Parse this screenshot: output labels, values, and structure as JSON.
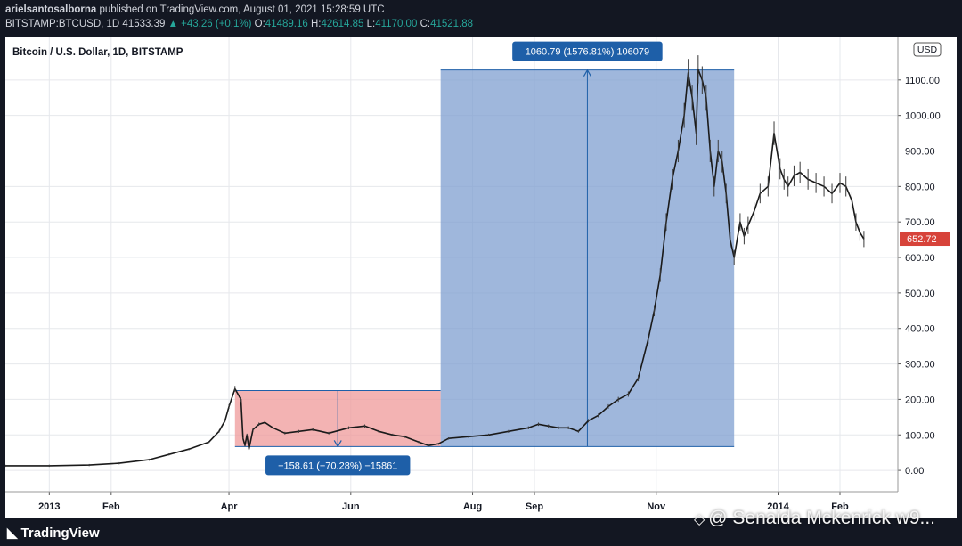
{
  "header": {
    "publisher": "arielsantosalborna",
    "published_text": "published on TradingView.com, August 01, 2021 15:28:59 UTC",
    "symbol": "BITSTAMP:BTCUSD, 1D",
    "last": "41533.39",
    "change": "▲ +43.26 (+0.1%)",
    "o_label": "O:",
    "o_value": "41489.16",
    "h_label": "H:",
    "h_value": "42614.85",
    "l_label": "L:",
    "l_value": "41170.00",
    "c_label": "C:",
    "c_value": "41521.88"
  },
  "chart_data": {
    "type": "line",
    "title": "Bitcoin / U.S. Dollar, 1D, BITSTAMP",
    "currency_badge": "USD",
    "last_price_label": "652.72",
    "last_price": 652.72,
    "y_ticks": [
      "0.00",
      "100.00",
      "200.00",
      "300.00",
      "400.00",
      "500.00",
      "600.00",
      "700.00",
      "800.00",
      "900.00",
      "1000.00",
      "1100.00"
    ],
    "ylim": [
      -60,
      1220
    ],
    "x_ticks": [
      {
        "label": "2013",
        "t": 0
      },
      {
        "label": "Feb",
        "t": 31
      },
      {
        "label": "Apr",
        "t": 90
      },
      {
        "label": "Jun",
        "t": 151
      },
      {
        "label": "Aug",
        "t": 212
      },
      {
        "label": "Sep",
        "t": 243
      },
      {
        "label": "Nov",
        "t": 304
      },
      {
        "label": "2014",
        "t": 365
      },
      {
        "label": "Feb",
        "t": 396
      }
    ],
    "xlim": [
      -22,
      425
    ],
    "series": [
      {
        "values_t": [
          -22,
          0,
          20,
          35,
          50,
          60,
          70,
          80,
          85,
          88,
          90,
          93,
          96,
          97,
          98,
          99,
          100,
          102,
          105,
          108,
          112,
          118,
          125,
          132,
          140,
          150,
          158,
          165,
          172,
          178,
          185,
          190,
          195,
          200,
          210,
          220,
          230,
          240,
          245,
          250,
          255,
          260,
          265,
          270,
          275,
          280,
          285,
          290,
          295,
          300,
          303,
          306,
          309,
          312,
          315,
          318,
          320,
          322,
          324,
          325,
          327,
          329,
          331,
          333,
          335,
          337,
          339,
          341,
          343,
          346,
          348,
          350,
          353,
          356,
          360,
          363,
          366,
          368,
          370,
          373,
          376,
          380,
          384,
          388,
          392,
          396,
          399,
          402,
          404,
          406,
          408
        ],
        "values_y": [
          13,
          13,
          15,
          20,
          30,
          45,
          60,
          80,
          110,
          140,
          180,
          230,
          200,
          90,
          70,
          100,
          60,
          115,
          130,
          135,
          120,
          105,
          110,
          115,
          105,
          120,
          125,
          110,
          100,
          95,
          80,
          70,
          75,
          90,
          95,
          100,
          110,
          120,
          130,
          125,
          120,
          120,
          110,
          140,
          155,
          180,
          200,
          215,
          260,
          370,
          450,
          550,
          700,
          820,
          900,
          1000,
          1120,
          1050,
          950,
          1130,
          1100,
          1050,
          900,
          800,
          900,
          870,
          780,
          650,
          600,
          700,
          660,
          690,
          730,
          780,
          800,
          950,
          850,
          820,
          800,
          830,
          840,
          820,
          810,
          800,
          780,
          810,
          800,
          760,
          700,
          670,
          652
        ]
      }
    ],
    "measure_down": {
      "label": "−158.61 (−70.28%) −15861",
      "t_start": 93,
      "t_end": 196,
      "y_top": 225,
      "y_bottom": 67,
      "color": "#ef9a9a"
    },
    "measure_up": {
      "label": "1060.79 (1576.81%) 106079",
      "t_start": 196,
      "t_end": 343,
      "y_top": 1128,
      "y_bottom": 67,
      "color": "#7f9fd0"
    },
    "grid": true
  },
  "footer": {
    "logo_text": "TradingView",
    "watermark": "@ Senaida Mckenrick w9..."
  }
}
